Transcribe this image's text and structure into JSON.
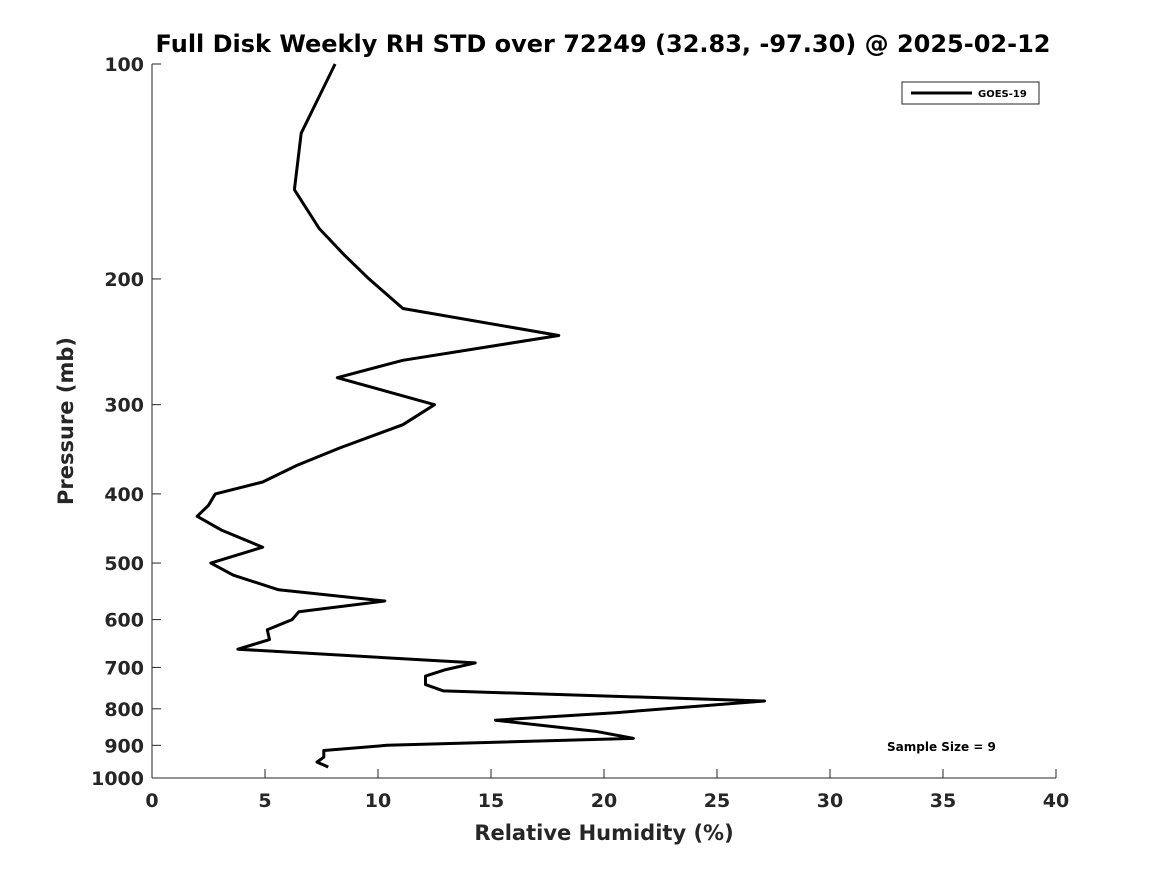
{
  "chart_data": {
    "type": "line",
    "title": "Full Disk Weekly RH STD over 72249 (32.83, -97.30) @ 2025-02-12",
    "xlabel": "Relative Humidity (%)",
    "ylabel": "Pressure (mb)",
    "xlim": [
      0,
      40
    ],
    "ylim": [
      100,
      1000
    ],
    "yscale": "log",
    "y_reversed": true,
    "xticks": [
      0,
      5,
      10,
      15,
      20,
      25,
      30,
      35,
      40
    ],
    "yticks": [
      100,
      200,
      300,
      400,
      500,
      600,
      700,
      800,
      900,
      1000
    ],
    "grid": false,
    "legend_position": "top-right",
    "annotation": "Sample Size = 9",
    "series": [
      {
        "name": "GOES-19",
        "color": "#000000",
        "x": [
          8.1,
          6.6,
          6.3,
          7.4,
          8.5,
          9.6,
          11.1,
          18.0,
          11.1,
          8.2,
          12.5,
          11.1,
          8.3,
          6.4,
          4.9,
          2.8,
          2.5,
          2.0,
          3.1,
          4.9,
          2.6,
          3.6,
          5.6,
          10.3,
          6.5,
          6.2,
          5.1,
          5.2,
          3.8,
          14.3,
          13.0,
          12.1,
          12.1,
          12.9,
          27.1,
          20.5,
          15.2,
          19.6,
          21.3,
          10.4,
          7.6,
          7.6,
          7.3,
          7.8
        ],
        "y": [
          100,
          125,
          150,
          170,
          185,
          200,
          220,
          240,
          260,
          275,
          300,
          320,
          345,
          365,
          385,
          400,
          415,
          430,
          450,
          475,
          500,
          520,
          545,
          565,
          585,
          600,
          620,
          640,
          660,
          690,
          705,
          720,
          740,
          755,
          780,
          810,
          830,
          860,
          880,
          900,
          915,
          935,
          950,
          965
        ]
      }
    ]
  }
}
